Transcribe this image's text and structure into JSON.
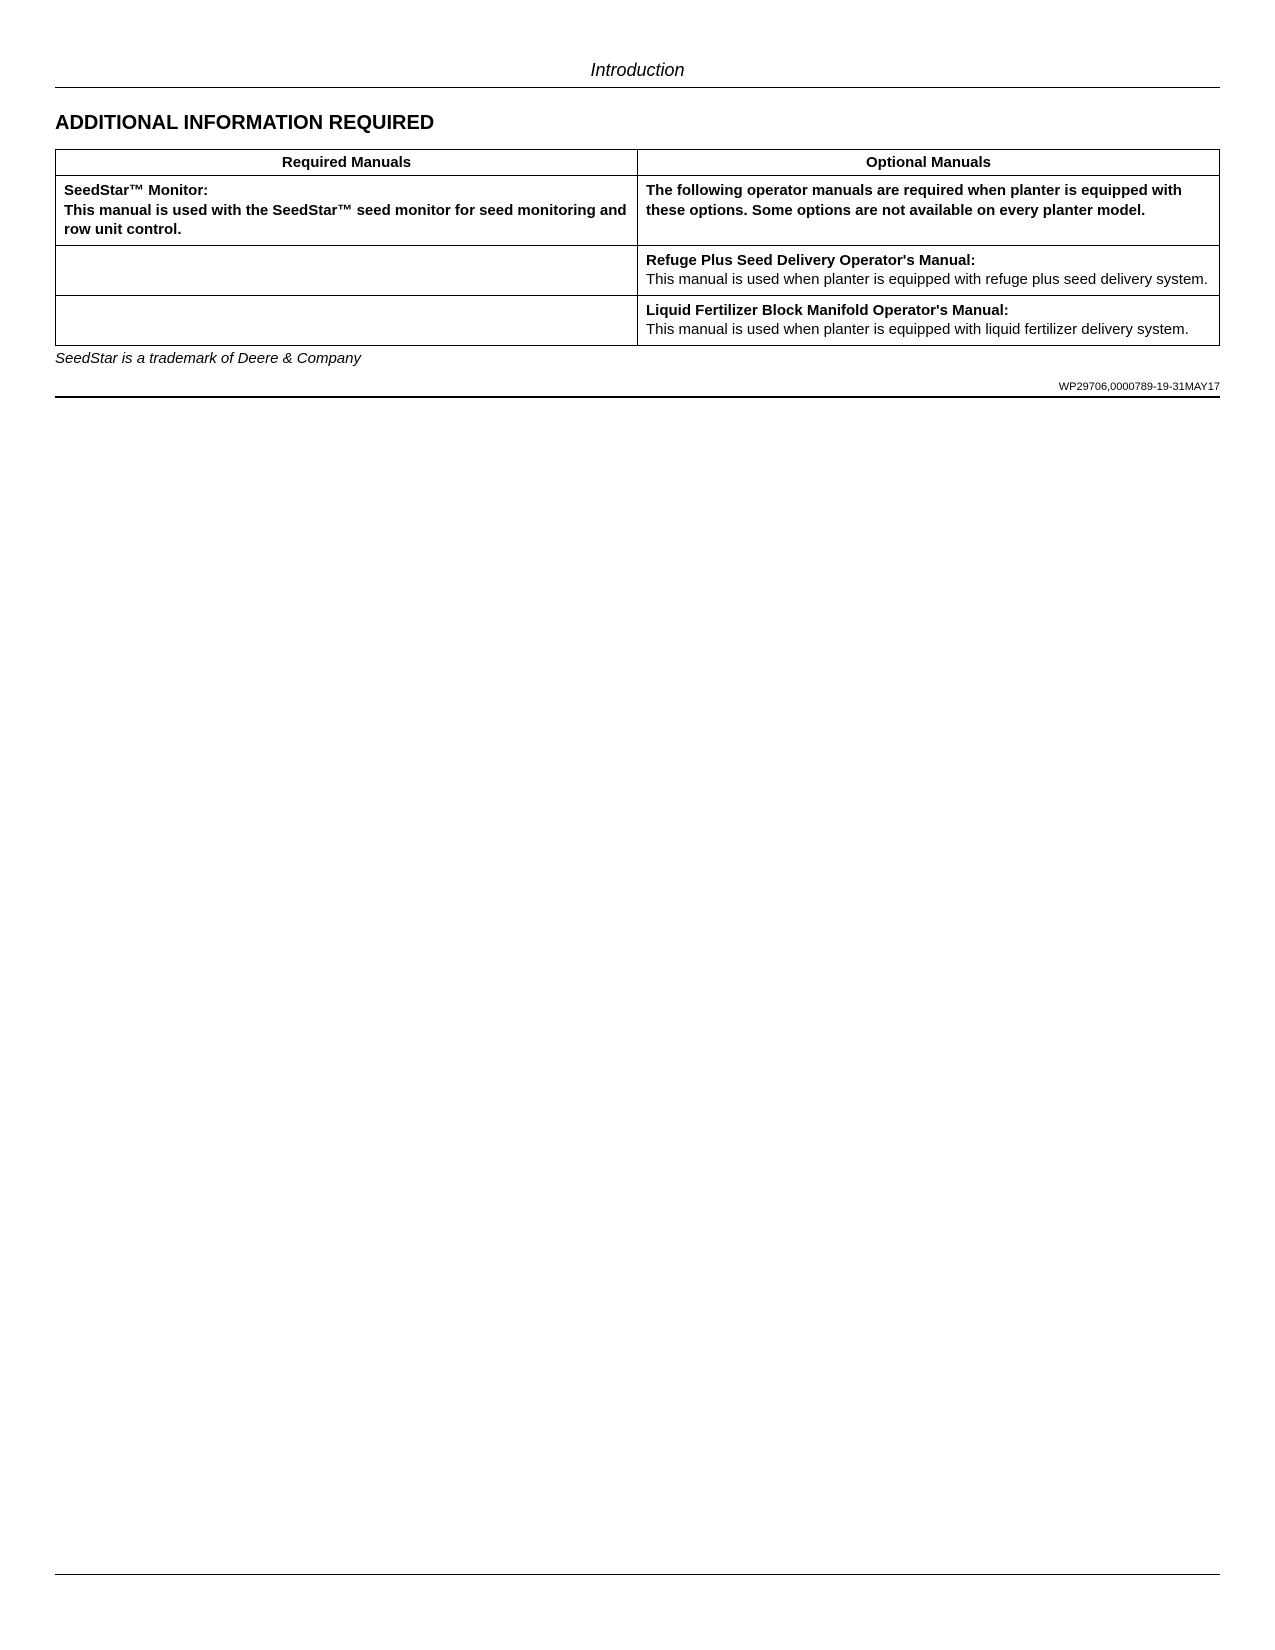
{
  "header": {
    "title": "Introduction"
  },
  "section": {
    "title": "ADDITIONAL INFORMATION REQUIRED"
  },
  "table": {
    "columns": [
      {
        "header": "Required Manuals",
        "width": "50%"
      },
      {
        "header": "Optional Manuals",
        "width": "50%"
      }
    ],
    "rows": [
      {
        "required": {
          "title": "SeedStar™ Monitor:",
          "desc": "This manual is used with the SeedStar™ seed monitor for seed monitoring and row unit control.",
          "bold": true
        },
        "optional": {
          "title": "",
          "desc": "The following operator manuals are required when planter is equipped with these options. Some options are not available on every planter model.",
          "bold": true
        }
      },
      {
        "required": {
          "title": "",
          "desc": "",
          "bold": false
        },
        "optional": {
          "title": "Refuge Plus Seed Delivery Operator's Manual:",
          "desc": "This manual is used when planter is equipped with refuge plus seed delivery system.",
          "bold": false
        }
      },
      {
        "required": {
          "title": "",
          "desc": "",
          "bold": false
        },
        "optional": {
          "title": "Liquid Fertilizer Block Manifold Operator's Manual:",
          "desc": "This manual is used when planter is equipped with liquid fertilizer delivery system.",
          "bold": false
        }
      }
    ]
  },
  "footnote": "SeedStar is a trademark of Deere & Company",
  "doc_code": "WP29706,0000789-19-31MAY17",
  "colors": {
    "text": "#000000",
    "background": "#ffffff",
    "border": "#000000"
  },
  "typography": {
    "header_fontsize": 18,
    "section_title_fontsize": 20,
    "table_fontsize": 15,
    "footnote_fontsize": 15,
    "doc_code_fontsize": 11
  }
}
